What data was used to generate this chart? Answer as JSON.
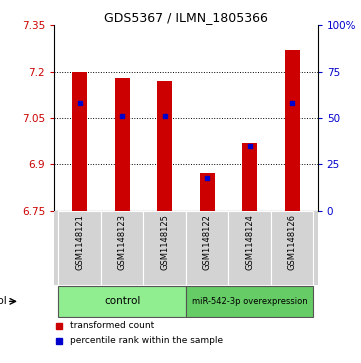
{
  "title": "GDS5367 / ILMN_1805366",
  "samples": [
    "GSM1148121",
    "GSM1148123",
    "GSM1148125",
    "GSM1148122",
    "GSM1148124",
    "GSM1148126"
  ],
  "groups": [
    "control",
    "control",
    "control",
    "miR-542-3p overexpression",
    "miR-542-3p overexpression",
    "miR-542-3p overexpression"
  ],
  "bar_color": "#CC0000",
  "blue_color": "#0000CC",
  "ylim_left": [
    6.75,
    7.35
  ],
  "ylim_right": [
    0,
    100
  ],
  "yticks_left": [
    6.75,
    6.9,
    7.05,
    7.2,
    7.35
  ],
  "yticks_right": [
    0,
    25,
    50,
    75,
    100
  ],
  "ytick_labels_left": [
    "6.75",
    "6.9",
    "7.05",
    "7.2",
    "7.35"
  ],
  "ytick_labels_right": [
    "0",
    "25",
    "50",
    "75",
    "100%"
  ],
  "bar_values": [
    7.2,
    7.18,
    7.17,
    6.87,
    6.97,
    7.27
  ],
  "bar_base": 6.75,
  "percentile_values": [
    7.1,
    7.055,
    7.055,
    6.855,
    6.96,
    7.1
  ],
  "bar_width": 0.35,
  "background_color": "#ffffff",
  "left_tick_color": "#CC0000",
  "right_tick_color": "#0000CC",
  "label_bg_color": "#D3D3D3",
  "control_color": "#90EE90",
  "overexp_color": "#66CC66",
  "legend_items": [
    {
      "label": "transformed count",
      "color": "#CC0000"
    },
    {
      "label": "percentile rank within the sample",
      "color": "#0000CC"
    }
  ],
  "group_label_1": "control",
  "group_label_2": "miR-542-3p overexpression",
  "n_control": 3,
  "n_overexpression": 3
}
